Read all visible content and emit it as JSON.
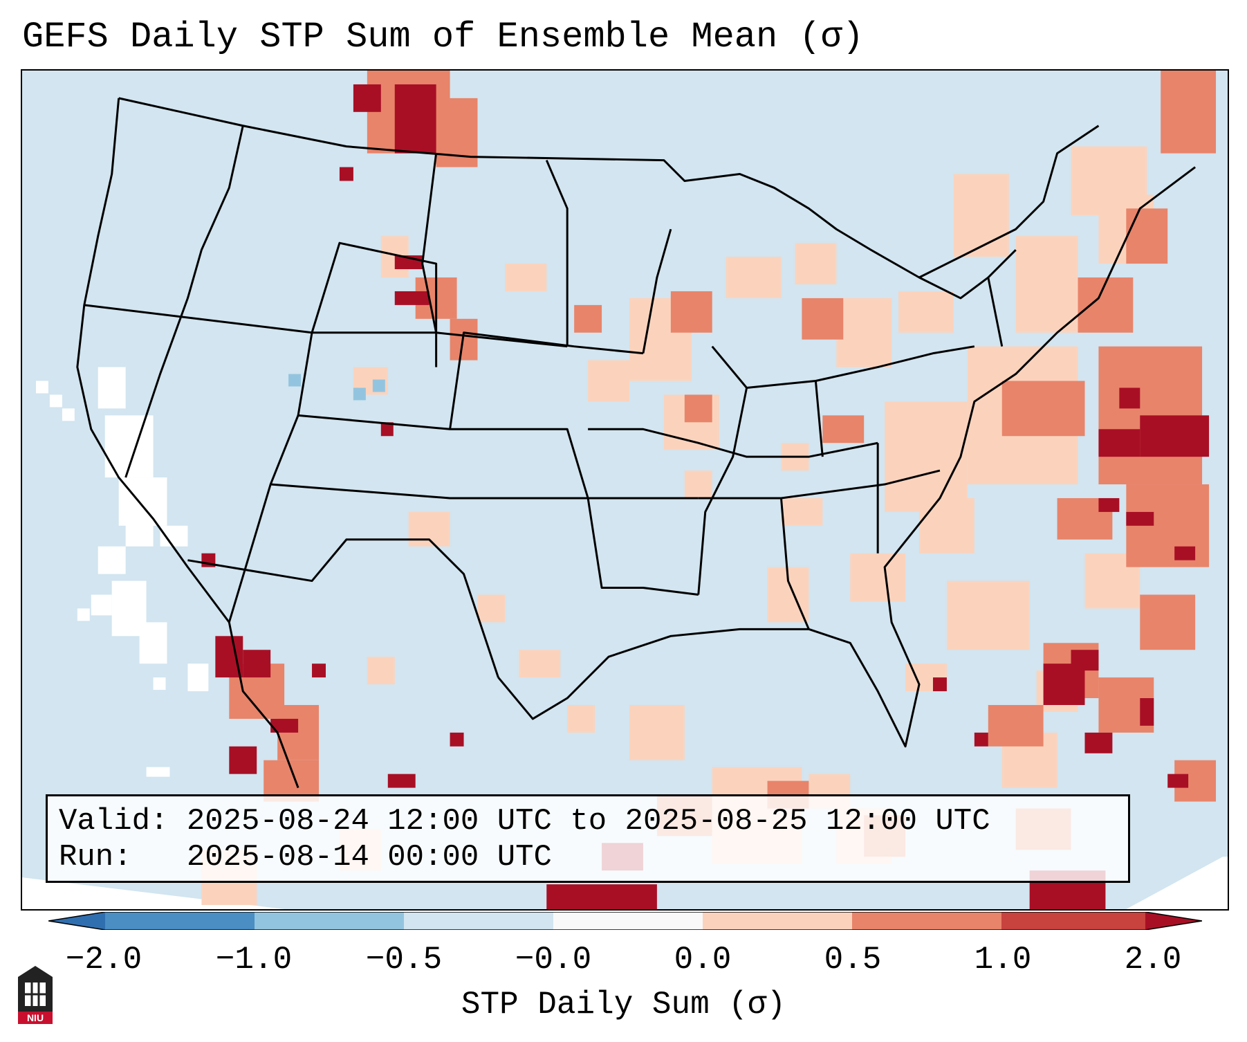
{
  "title": "GEFS Daily STP Sum of Ensemble Mean (σ)",
  "info": {
    "valid_line": "Valid: 2025-08-24 12:00 UTC to 2025-08-25 12:00 UTC",
    "run_line": "Run:   2025-08-14 00:00 UTC"
  },
  "colorbar": {
    "label": "STP Daily Sum (σ)",
    "ticks": [
      "−2.0",
      "−1.0",
      "−0.5",
      "−0.0",
      "0.0",
      "0.5",
      "1.0",
      "2.0"
    ],
    "colors": {
      "below_min": "#2f6fb0",
      "bin_neg2_neg1": "#4a8ec4",
      "bin_neg1_neg05": "#93c4df",
      "bin_neg05_0": "#d2e5f0",
      "bin_0_05": "#f9f9f9",
      "bin_05_1": "#fbd3bd",
      "bin_1_2": "#e8846a",
      "bin_2_max": "#c8423e",
      "above_max": "#a80f25"
    }
  },
  "logo": {
    "text": "NIU"
  }
}
